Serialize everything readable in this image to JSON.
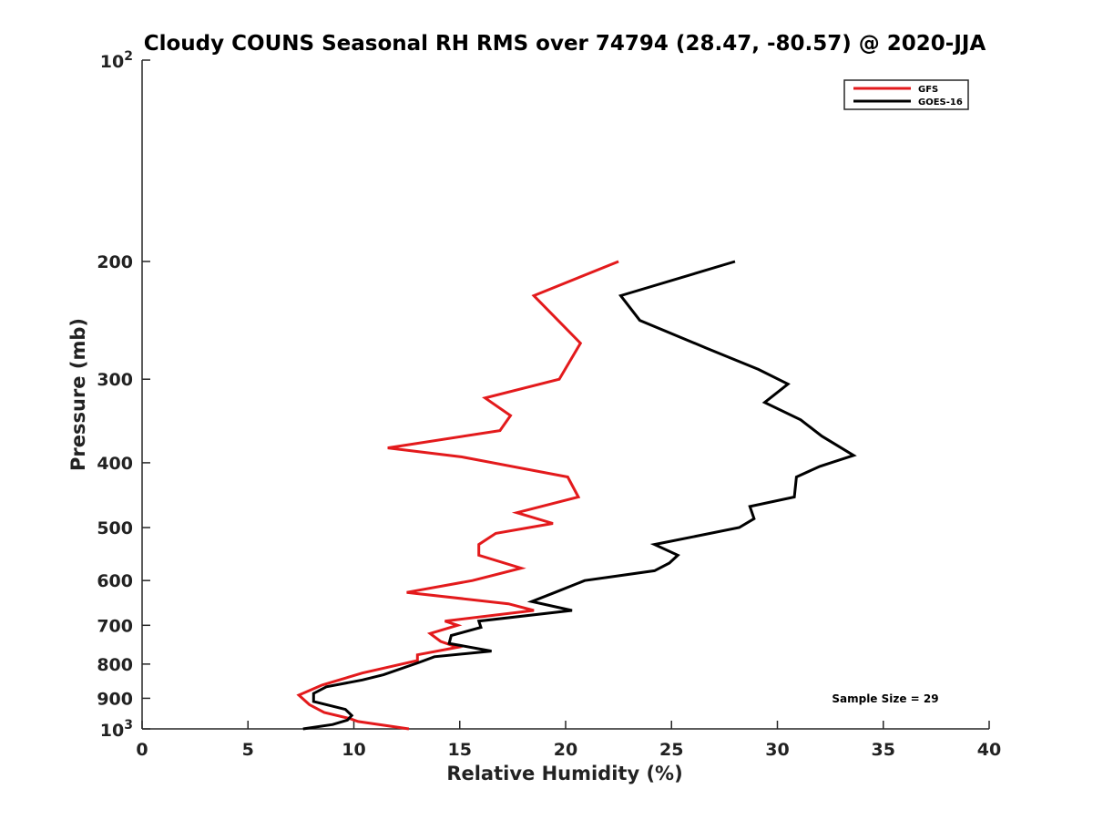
{
  "chart_data": {
    "type": "line",
    "title": "Cloudy COUNS Seasonal RH RMS over 74794 (28.47, -80.57) @ 2020-JJA",
    "xlabel": "Relative Humidity (%)",
    "ylabel": "Pressure (mb)",
    "xlim": [
      0,
      40
    ],
    "ylim": [
      100,
      1000
    ],
    "yscale": "log",
    "y_reversed": true,
    "grid": false,
    "legend_position": "top-right",
    "x_ticks": [
      0,
      5,
      10,
      15,
      20,
      25,
      30,
      35,
      40
    ],
    "x_tick_labels": [
      "0",
      "5",
      "10",
      "15",
      "20",
      "25",
      "30",
      "35",
      "40"
    ],
    "y_ticks": [
      200,
      300,
      400,
      500,
      600,
      700,
      800,
      900
    ],
    "y_tick_labels": [
      "200",
      "300",
      "400",
      "500",
      "600",
      "700",
      "800",
      "900"
    ],
    "y_end_labels": [
      {
        "value": 100,
        "base": "10",
        "exp": "2"
      },
      {
        "value": 1000,
        "base": "10",
        "exp": "3"
      }
    ],
    "annotation": "Sample Size = 29",
    "series": [
      {
        "name": "GFS",
        "color": "#e31a1c",
        "points": [
          [
            22.5,
            200
          ],
          [
            18.5,
            225
          ],
          [
            20.7,
            265
          ],
          [
            19.7,
            300
          ],
          [
            16.2,
            320
          ],
          [
            17.4,
            340
          ],
          [
            16.9,
            358
          ],
          [
            11.6,
            380
          ],
          [
            15.1,
            392
          ],
          [
            20.1,
            420
          ],
          [
            20.6,
            450
          ],
          [
            17.7,
            475
          ],
          [
            19.4,
            493
          ],
          [
            16.7,
            510
          ],
          [
            15.9,
            530
          ],
          [
            15.9,
            550
          ],
          [
            17.9,
            575
          ],
          [
            15.6,
            600
          ],
          [
            12.5,
            625
          ],
          [
            17.3,
            650
          ],
          [
            18.5,
            665
          ],
          [
            14.3,
            690
          ],
          [
            14.9,
            700
          ],
          [
            13.6,
            720
          ],
          [
            14.1,
            740
          ],
          [
            14.9,
            755
          ],
          [
            13,
            775
          ],
          [
            13,
            790
          ],
          [
            10.4,
            825
          ],
          [
            8.5,
            860
          ],
          [
            7.4,
            890
          ],
          [
            7.9,
            920
          ],
          [
            8.6,
            945
          ],
          [
            9.8,
            965
          ],
          [
            10.2,
            975
          ],
          [
            12.6,
            1000
          ]
        ]
      },
      {
        "name": "GOES-16",
        "color": "#000000",
        "points": [
          [
            28,
            200
          ],
          [
            22.6,
            225
          ],
          [
            23.5,
            245
          ],
          [
            26.7,
            270
          ],
          [
            29.1,
            290
          ],
          [
            30.5,
            305
          ],
          [
            29.4,
            325
          ],
          [
            31.1,
            345
          ],
          [
            32.1,
            365
          ],
          [
            33.6,
            390
          ],
          [
            32,
            405
          ],
          [
            30.9,
            420
          ],
          [
            30.8,
            450
          ],
          [
            28.7,
            465
          ],
          [
            28.9,
            485
          ],
          [
            28.2,
            500
          ],
          [
            24.2,
            530
          ],
          [
            25.3,
            550
          ],
          [
            24.9,
            565
          ],
          [
            24.2,
            580
          ],
          [
            20.9,
            600
          ],
          [
            19.5,
            625
          ],
          [
            18.4,
            645
          ],
          [
            20.3,
            665
          ],
          [
            15.9,
            690
          ],
          [
            16,
            705
          ],
          [
            14.6,
            725
          ],
          [
            14.5,
            745
          ],
          [
            16.5,
            765
          ],
          [
            13.8,
            780
          ],
          [
            13.1,
            795
          ],
          [
            11.4,
            830
          ],
          [
            10.4,
            845
          ],
          [
            8.7,
            865
          ],
          [
            8.1,
            885
          ],
          [
            8.1,
            910
          ],
          [
            9.6,
            935
          ],
          [
            9.9,
            955
          ],
          [
            9.7,
            970
          ],
          [
            9,
            985
          ],
          [
            7.6,
            1000
          ]
        ]
      }
    ]
  }
}
